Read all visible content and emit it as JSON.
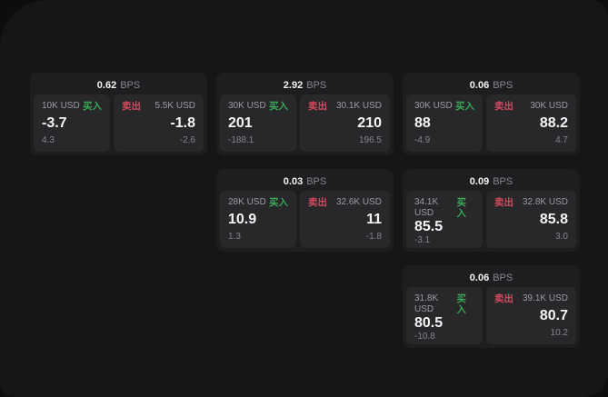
{
  "window": {
    "outer_bg": "#0d0d0f",
    "bg": "#161618"
  },
  "colors": {
    "card_bg": "#1e1e20",
    "panel_bg": "#28282b",
    "buy_green": "#3aa856",
    "sell_red": "#d24a5e",
    "value_white": "#f4f5f7",
    "label_gray": "#9c9ca1",
    "delta_gray": "#85858a"
  },
  "labels": {
    "bps_unit": "BPS",
    "buy": "买入",
    "sell": "卖出"
  },
  "cards": [
    {
      "bps": "0.62",
      "buy": {
        "amount": "10K USD",
        "value": "-3.7",
        "delta": "4.3"
      },
      "sell": {
        "amount": "5.5K USD",
        "value": "-1.8",
        "delta": "-2.6"
      }
    },
    {
      "bps": "2.92",
      "buy": {
        "amount": "30K USD",
        "value": "201",
        "delta": "-188.1"
      },
      "sell": {
        "amount": "30.1K USD",
        "value": "210",
        "delta": "196.5"
      }
    },
    {
      "bps": "0.06",
      "buy": {
        "amount": "30K USD",
        "value": "88",
        "delta": "-4.9"
      },
      "sell": {
        "amount": "30K USD",
        "value": "88.2",
        "delta": "4.7"
      }
    },
    {
      "bps": "0.03",
      "buy": {
        "amount": "28K USD",
        "value": "10.9",
        "delta": "1.3"
      },
      "sell": {
        "amount": "32.6K USD",
        "value": "11",
        "delta": "-1.8"
      }
    },
    {
      "bps": "0.09",
      "buy": {
        "amount": "34.1K USD",
        "value": "85.5",
        "delta": "-3.1"
      },
      "sell": {
        "amount": "32.8K USD",
        "value": "85.8",
        "delta": "3.0"
      }
    },
    {
      "bps": "0.06",
      "buy": {
        "amount": "31.8K USD",
        "value": "80.5",
        "delta": "-10.8"
      },
      "sell": {
        "amount": "39.1K USD",
        "value": "80.7",
        "delta": "10.2"
      }
    }
  ]
}
